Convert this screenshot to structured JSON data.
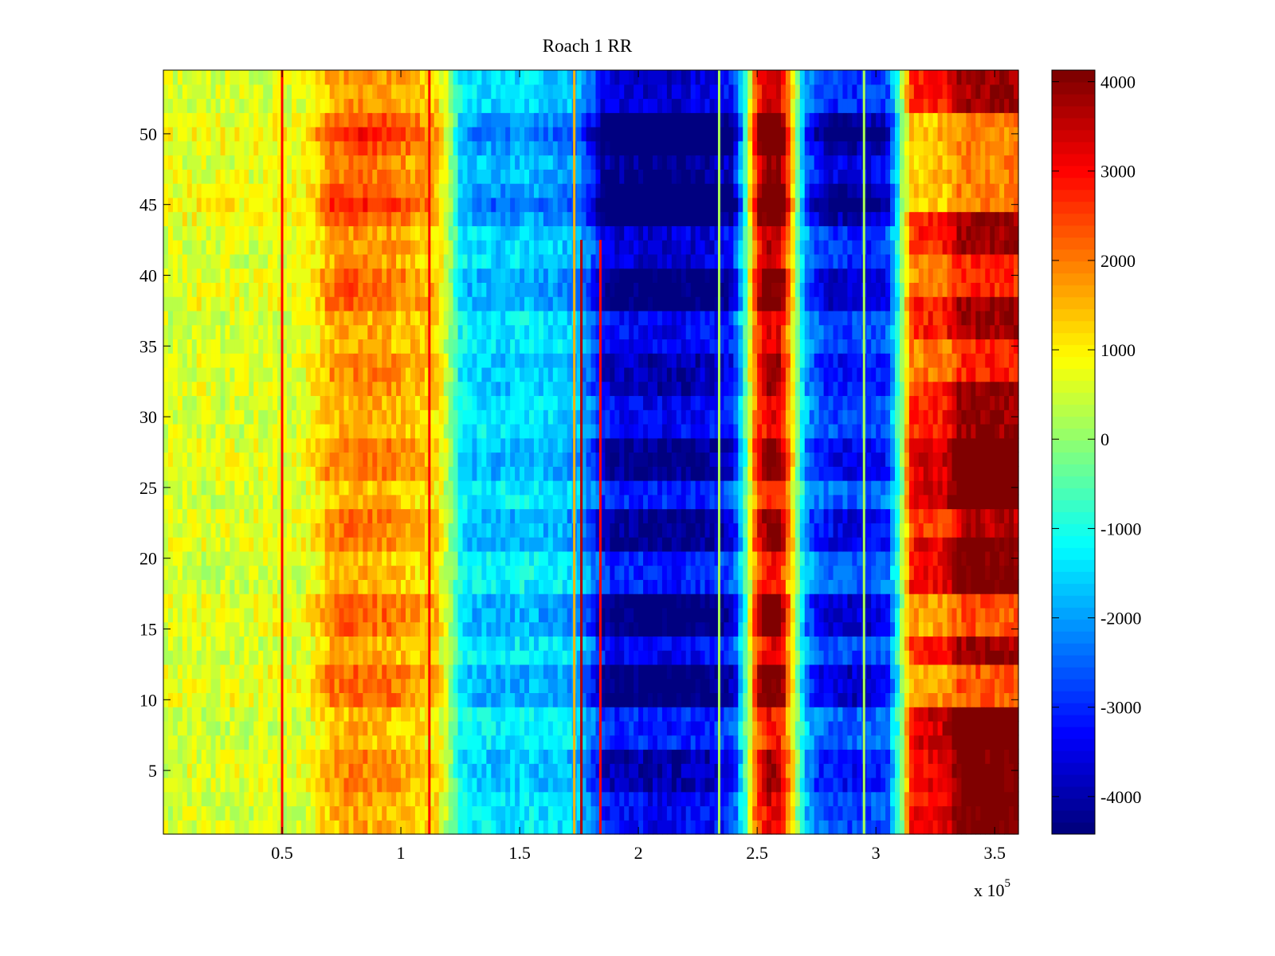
{
  "chart_data": {
    "type": "heatmap",
    "title": "Roach 1 RR",
    "xlabel": "",
    "ylabel": "",
    "x_exponent_label": "x 10",
    "x_exponent_power": "5",
    "xlim": [
      0,
      360000
    ],
    "ylim": [
      0.5,
      54.5
    ],
    "clim": [
      -4420,
      4130
    ],
    "colormap": "jet",
    "rows": 54,
    "x_bin_width": 2000,
    "xticks": [
      50000,
      100000,
      150000,
      200000,
      250000,
      300000,
      350000
    ],
    "xtick_labels": [
      "0.5",
      "1",
      "1.5",
      "2",
      "2.5",
      "3",
      "3.5"
    ],
    "yticks": [
      5,
      10,
      15,
      20,
      25,
      30,
      35,
      40,
      45,
      50
    ],
    "ytick_labels": [
      "5",
      "10",
      "15",
      "20",
      "25",
      "30",
      "35",
      "40",
      "45",
      "50"
    ],
    "colorbar_ticks": [
      4000,
      3000,
      2000,
      1000,
      0,
      -1000,
      -2000,
      -3000,
      -4000
    ],
    "colorbar_tick_labels": [
      "4000",
      "3000",
      "2000",
      "1000",
      "0",
      "-1000",
      "-2000",
      "-3000",
      "-4000"
    ],
    "column_profile_step": 5000,
    "column_profile": [
      500,
      450,
      500,
      500,
      450,
      500,
      500,
      450,
      500,
      550,
      500,
      500,
      600,
      900,
      1300,
      1400,
      1500,
      1500,
      1400,
      1400,
      1300,
      1200,
      1100,
      1000,
      200,
      -1000,
      -1200,
      -1200,
      -1300,
      -1300,
      -1200,
      -1200,
      -1300,
      -1300,
      -1400,
      -1500,
      -2000,
      -2800,
      -3000,
      -3000,
      -3000,
      -3100,
      -3100,
      -3100,
      -3000,
      -3000,
      -3000,
      -2800,
      -2600,
      -500,
      2200,
      3000,
      2800,
      800,
      -1500,
      -2200,
      -2400,
      -2500,
      -2500,
      -2500,
      -2400,
      -2200,
      -500,
      2600,
      2800,
      2800,
      2900,
      3800,
      3900,
      3900,
      3900,
      3900
    ],
    "row_modulation": [
      0.1,
      0.1,
      0.1,
      0.3,
      0.3,
      0.3,
      0.0,
      0.0,
      0.0,
      0.5,
      0.5,
      0.5,
      0.1,
      0.1,
      0.5,
      0.5,
      0.5,
      0.0,
      0.0,
      0.0,
      0.4,
      0.4,
      0.4,
      0.0,
      0.0,
      0.4,
      0.4,
      0.4,
      0.1,
      0.1,
      0.1,
      0.3,
      0.3,
      0.3,
      0.1,
      0.1,
      0.1,
      0.5,
      0.5,
      0.5,
      0.2,
      0.2,
      0.2,
      0.6,
      0.9,
      0.6,
      0.4,
      0.4,
      0.6,
      0.9,
      0.6,
      0.2,
      0.2,
      0.2
    ],
    "row_modulation_right": [
      1.1,
      1.1,
      1.1,
      1.1,
      1.1,
      1.1,
      1.2,
      1.2,
      1.2,
      0.6,
      0.6,
      0.6,
      1.0,
      1.0,
      0.6,
      0.6,
      0.6,
      1.1,
      1.1,
      1.1,
      1.1,
      0.9,
      0.9,
      1.2,
      1.2,
      1.2,
      1.2,
      1.2,
      1.0,
      1.0,
      1.0,
      1.0,
      0.7,
      0.7,
      0.7,
      1.0,
      1.0,
      1.0,
      0.7,
      0.7,
      0.7,
      1.0,
      1.0,
      1.0,
      0.5,
      0.5,
      0.5,
      0.5,
      0.5,
      0.5,
      0.5,
      1.0,
      1.0,
      1.0
    ],
    "right_region_start": 310000,
    "noise_amplitude": 450,
    "vertical_lines": [
      {
        "x": 50000,
        "value": 3000,
        "rows": [
          1,
          54
        ]
      },
      {
        "x": 112000,
        "value": 3000,
        "rows": [
          1,
          54
        ]
      },
      {
        "x": 173000,
        "value": 1500,
        "rows": [
          1,
          54
        ]
      },
      {
        "x": 176000,
        "value": 3600,
        "rows": [
          1,
          42
        ]
      },
      {
        "x": 184000,
        "value": 3000,
        "rows": [
          1,
          42
        ]
      },
      {
        "x": 234000,
        "value": 200,
        "rows": [
          1,
          54
        ]
      },
      {
        "x": 295000,
        "value": 200,
        "rows": [
          1,
          54
        ]
      }
    ]
  }
}
